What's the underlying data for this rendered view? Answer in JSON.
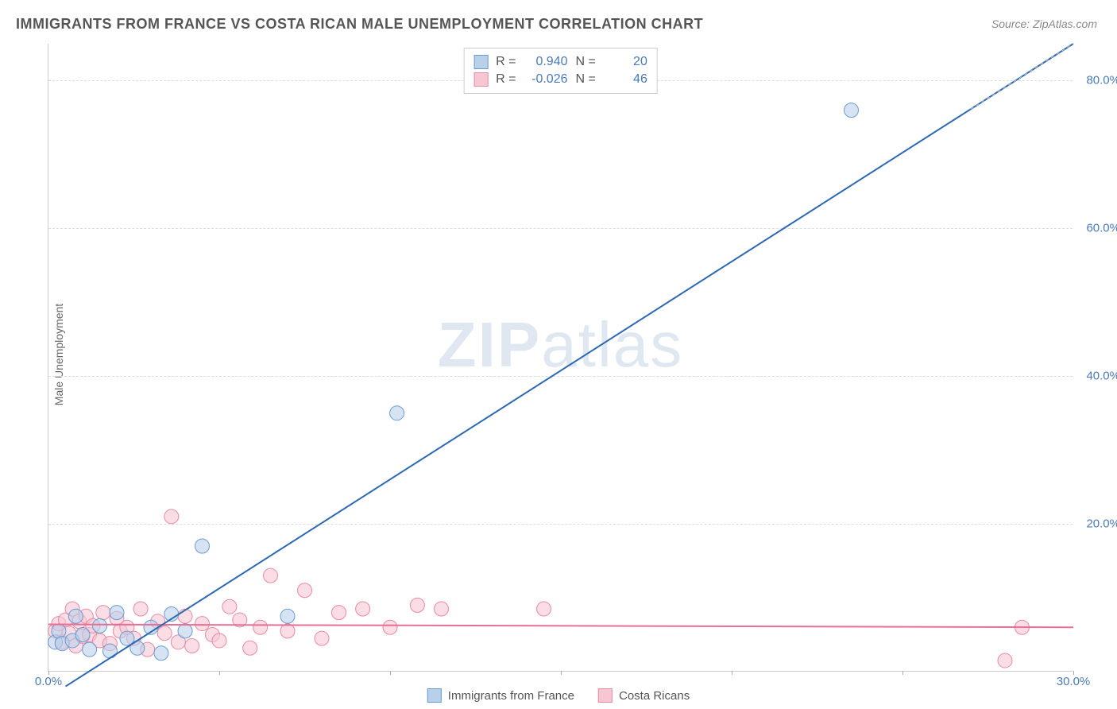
{
  "title": "IMMIGRANTS FROM FRANCE VS COSTA RICAN MALE UNEMPLOYMENT CORRELATION CHART",
  "source": "Source: ZipAtlas.com",
  "ylabel": "Male Unemployment",
  "watermark": {
    "bold": "ZIP",
    "rest": "atlas"
  },
  "chart": {
    "type": "scatter",
    "xlim": [
      0,
      30
    ],
    "ylim": [
      0,
      85
    ],
    "xticks": [
      0,
      5,
      10,
      15,
      20,
      25,
      30
    ],
    "xtick_labels": [
      "0.0%",
      "",
      "",
      "",
      "",
      "",
      "30.0%"
    ],
    "yticks": [
      20,
      40,
      60,
      80
    ],
    "ytick_labels": [
      "20.0%",
      "40.0%",
      "60.0%",
      "80.0%"
    ],
    "grid_color": "#dddddd",
    "background_color": "#ffffff",
    "axis_label_color": "#4a7ab8",
    "marker_radius": 9,
    "marker_stroke_width": 1,
    "line_width": 2
  },
  "series": [
    {
      "name": "Immigrants from France",
      "fill": "#b9d0ea",
      "stroke": "#6a9bd1",
      "line_color": "#2d68b2",
      "points": [
        [
          0.2,
          4.0
        ],
        [
          0.3,
          5.5
        ],
        [
          0.4,
          3.8
        ],
        [
          0.7,
          4.2
        ],
        [
          0.8,
          7.5
        ],
        [
          1.0,
          5.0
        ],
        [
          1.2,
          3.0
        ],
        [
          1.5,
          6.2
        ],
        [
          1.8,
          2.8
        ],
        [
          2.0,
          8.0
        ],
        [
          2.3,
          4.5
        ],
        [
          2.6,
          3.2
        ],
        [
          3.0,
          6.0
        ],
        [
          3.3,
          2.5
        ],
        [
          3.6,
          7.8
        ],
        [
          4.0,
          5.5
        ],
        [
          4.5,
          17.0
        ],
        [
          7.0,
          7.5
        ],
        [
          10.2,
          35.0
        ],
        [
          23.5,
          76.0
        ]
      ],
      "trend": {
        "x1": 0.5,
        "y1": -2.0,
        "x2": 30.0,
        "y2": 85.0
      },
      "R": "0.940",
      "N": "20"
    },
    {
      "name": "Costa Ricans",
      "fill": "#f6c7d3",
      "stroke": "#e88aa3",
      "line_color": "#e76f95",
      "points": [
        [
          0.2,
          5.5
        ],
        [
          0.3,
          6.5
        ],
        [
          0.4,
          4.0
        ],
        [
          0.5,
          7.0
        ],
        [
          0.6,
          5.2
        ],
        [
          0.7,
          8.5
        ],
        [
          0.8,
          3.5
        ],
        [
          0.9,
          6.8
        ],
        [
          1.0,
          4.8
        ],
        [
          1.1,
          7.5
        ],
        [
          1.2,
          5.0
        ],
        [
          1.3,
          6.2
        ],
        [
          1.5,
          4.2
        ],
        [
          1.6,
          8.0
        ],
        [
          1.8,
          3.8
        ],
        [
          2.0,
          7.2
        ],
        [
          2.1,
          5.5
        ],
        [
          2.3,
          6.0
        ],
        [
          2.5,
          4.5
        ],
        [
          2.7,
          8.5
        ],
        [
          2.9,
          3.0
        ],
        [
          3.2,
          6.8
        ],
        [
          3.4,
          5.2
        ],
        [
          3.6,
          21.0
        ],
        [
          3.8,
          4.0
        ],
        [
          4.0,
          7.5
        ],
        [
          4.2,
          3.5
        ],
        [
          4.5,
          6.5
        ],
        [
          4.8,
          5.0
        ],
        [
          5.0,
          4.2
        ],
        [
          5.3,
          8.8
        ],
        [
          5.6,
          7.0
        ],
        [
          5.9,
          3.2
        ],
        [
          6.2,
          6.0
        ],
        [
          6.5,
          13.0
        ],
        [
          7.0,
          5.5
        ],
        [
          7.5,
          11.0
        ],
        [
          8.0,
          4.5
        ],
        [
          8.5,
          8.0
        ],
        [
          9.2,
          8.5
        ],
        [
          10.0,
          6.0
        ],
        [
          10.8,
          9.0
        ],
        [
          11.5,
          8.5
        ],
        [
          14.5,
          8.5
        ],
        [
          28.0,
          1.5
        ],
        [
          28.5,
          6.0
        ]
      ],
      "trend": {
        "x1": 0.0,
        "y1": 6.4,
        "x2": 30.0,
        "y2": 6.0
      },
      "R": "-0.026",
      "N": "46"
    }
  ],
  "stats_labels": {
    "R": "R =",
    "N": "N ="
  },
  "legend": [
    {
      "label": "Immigrants from France",
      "fill": "#b9d0ea",
      "stroke": "#6a9bd1"
    },
    {
      "label": "Costa Ricans",
      "fill": "#f6c7d3",
      "stroke": "#e88aa3"
    }
  ]
}
